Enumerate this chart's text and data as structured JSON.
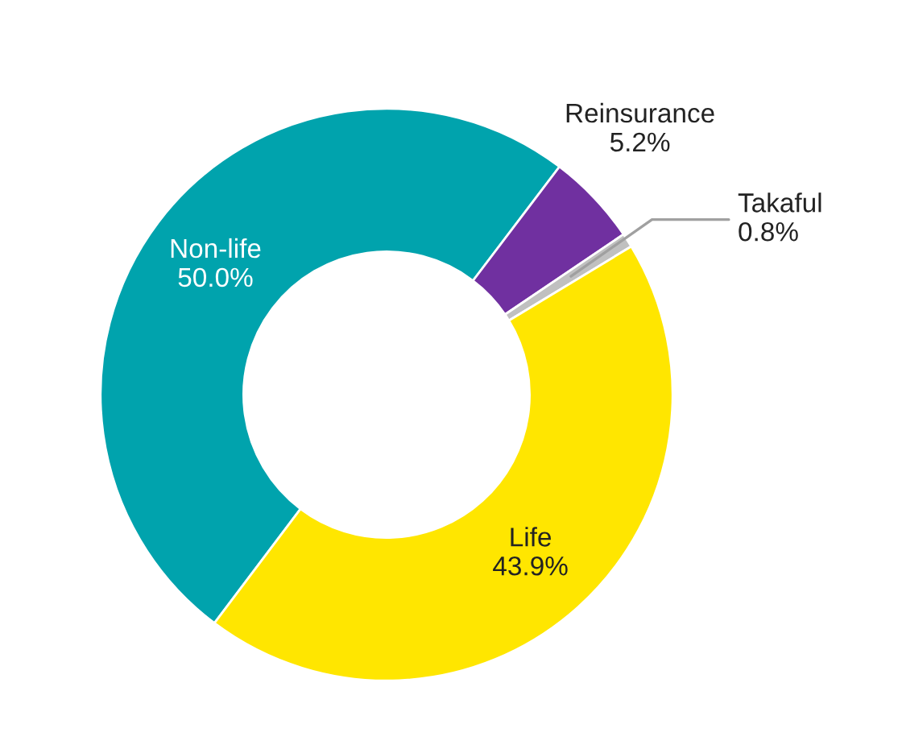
{
  "chart_data": {
    "type": "donut",
    "categories": [
      "Non-life",
      "Reinsurance",
      "Takaful",
      "Life"
    ],
    "values": [
      50.0,
      5.2,
      0.8,
      43.9
    ],
    "value_labels": [
      "50.0%",
      "5.2%",
      "0.8%",
      "43.9%"
    ],
    "colors": [
      "#00a3ad",
      "#7030a0",
      "#c0c0c0",
      "#ffe600"
    ]
  }
}
